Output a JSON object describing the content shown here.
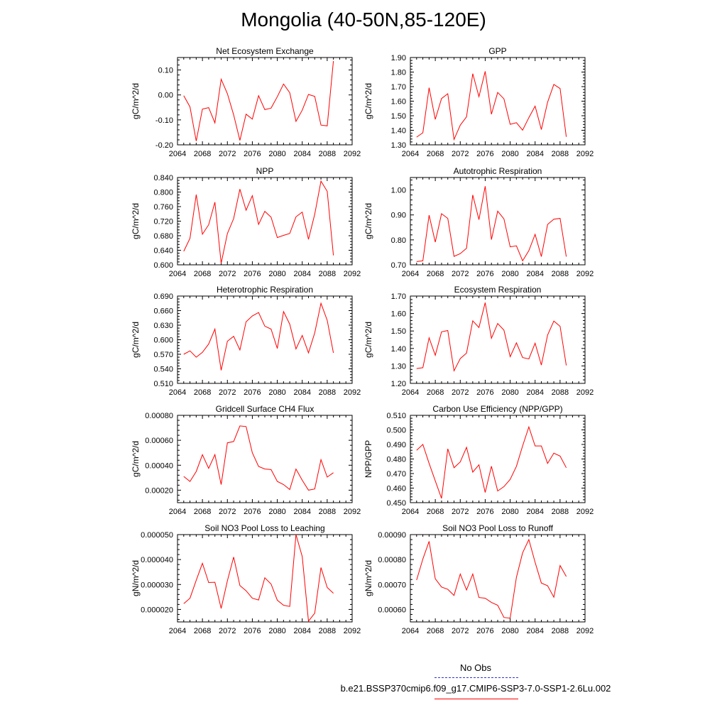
{
  "title": "Mongolia (40-50N,85-120E)",
  "legend": {
    "obs_label": "No Obs",
    "obs_color": "#3333cc",
    "case_label": "b.e21.BSSP370cmip6.f09_g17.CMIP6-SSP3-7.0-SSP1-2.6Lu.002",
    "case_color": "#ff0000"
  },
  "chart_data": [
    {
      "type": "line",
      "title": "Net Ecosystem Exchange",
      "ylabel": "gC/m^2/d",
      "xlim": [
        2064,
        2092
      ],
      "xticks": [
        "2064",
        "2068",
        "2072",
        "2076",
        "2080",
        "2084",
        "2088",
        "2092"
      ],
      "ylim": [
        -0.2,
        0.15
      ],
      "yticks": [
        "-0.20",
        "-0.10",
        "0.00",
        "0.10"
      ],
      "x": [
        2065,
        2066,
        2067,
        2068,
        2069,
        2070,
        2071,
        2072,
        2073,
        2074,
        2075,
        2076,
        2077,
        2078,
        2079,
        2080,
        2081,
        2082,
        2083,
        2084,
        2085,
        2086,
        2087,
        2088,
        2089
      ],
      "values": [
        -0.003,
        -0.048,
        -0.185,
        -0.057,
        -0.051,
        -0.112,
        0.063,
        0.005,
        -0.08,
        -0.182,
        -0.077,
        -0.097,
        -0.003,
        -0.059,
        -0.053,
        -0.007,
        0.044,
        0.009,
        -0.106,
        -0.061,
        0.002,
        -0.006,
        -0.121,
        -0.124,
        0.136
      ]
    },
    {
      "type": "line",
      "title": "GPP",
      "ylabel": "gC/m^2/d",
      "xlim": [
        2064,
        2092
      ],
      "xticks": [
        "2064",
        "2068",
        "2072",
        "2076",
        "2080",
        "2084",
        "2088",
        "2092"
      ],
      "ylim": [
        1.3,
        1.9
      ],
      "yticks": [
        "1.30",
        "1.40",
        "1.50",
        "1.60",
        "1.70",
        "1.80",
        "1.90"
      ],
      "x": [
        2065,
        2066,
        2067,
        2068,
        2069,
        2070,
        2071,
        2072,
        2073,
        2074,
        2075,
        2076,
        2077,
        2078,
        2079,
        2080,
        2081,
        2082,
        2083,
        2084,
        2085,
        2086,
        2087,
        2088,
        2089
      ],
      "values": [
        1.353,
        1.383,
        1.692,
        1.475,
        1.618,
        1.651,
        1.337,
        1.435,
        1.492,
        1.789,
        1.631,
        1.805,
        1.51,
        1.66,
        1.616,
        1.441,
        1.452,
        1.401,
        1.487,
        1.566,
        1.405,
        1.593,
        1.715,
        1.687,
        1.355
      ]
    },
    {
      "type": "line",
      "title": "NPP",
      "ylabel": "gC/m^2/d",
      "xlim": [
        2064,
        2092
      ],
      "xticks": [
        "2064",
        "2068",
        "2072",
        "2076",
        "2080",
        "2084",
        "2088",
        "2092"
      ],
      "ylim": [
        0.6,
        0.84
      ],
      "yticks": [
        "0.600",
        "0.640",
        "0.680",
        "0.720",
        "0.760",
        "0.800",
        "0.840"
      ],
      "x": [
        2065,
        2066,
        2067,
        2068,
        2069,
        2070,
        2071,
        2072,
        2073,
        2074,
        2075,
        2076,
        2077,
        2078,
        2079,
        2080,
        2081,
        2082,
        2083,
        2084,
        2085,
        2086,
        2087,
        2088,
        2089
      ],
      "values": [
        0.637,
        0.673,
        0.793,
        0.684,
        0.71,
        0.772,
        0.604,
        0.686,
        0.727,
        0.808,
        0.75,
        0.79,
        0.711,
        0.747,
        0.731,
        0.675,
        0.681,
        0.686,
        0.732,
        0.745,
        0.67,
        0.739,
        0.83,
        0.802,
        0.626
      ]
    },
    {
      "type": "line",
      "title": "Autotrophic Respiration",
      "ylabel": "gC/m^2/d",
      "xlim": [
        2064,
        2092
      ],
      "xticks": [
        "2064",
        "2068",
        "2072",
        "2076",
        "2080",
        "2084",
        "2088",
        "2092"
      ],
      "ylim": [
        0.7,
        1.05
      ],
      "yticks": [
        "0.70",
        "0.80",
        "0.90",
        "1.00"
      ],
      "x": [
        2065,
        2066,
        2067,
        2068,
        2069,
        2070,
        2071,
        2072,
        2073,
        2074,
        2075,
        2076,
        2077,
        2078,
        2079,
        2080,
        2081,
        2082,
        2083,
        2084,
        2085,
        2086,
        2087,
        2088,
        2089
      ],
      "values": [
        0.713,
        0.716,
        0.899,
        0.791,
        0.905,
        0.886,
        0.734,
        0.745,
        0.766,
        0.98,
        0.881,
        1.015,
        0.801,
        0.915,
        0.884,
        0.772,
        0.776,
        0.716,
        0.757,
        0.822,
        0.733,
        0.862,
        0.883,
        0.886,
        0.733
      ]
    },
    {
      "type": "line",
      "title": "Heterotrophic Respiration",
      "ylabel": "gC/m^2/d",
      "xlim": [
        2064,
        2092
      ],
      "xticks": [
        "2064",
        "2068",
        "2072",
        "2076",
        "2080",
        "2084",
        "2088",
        "2092"
      ],
      "ylim": [
        0.51,
        0.69
      ],
      "yticks": [
        "0.510",
        "0.540",
        "0.570",
        "0.600",
        "0.630",
        "0.660",
        "0.690"
      ],
      "x": [
        2065,
        2066,
        2067,
        2068,
        2069,
        2070,
        2071,
        2072,
        2073,
        2074,
        2075,
        2076,
        2077,
        2078,
        2079,
        2080,
        2081,
        2082,
        2083,
        2084,
        2085,
        2086,
        2087,
        2088,
        2089
      ],
      "values": [
        0.57,
        0.577,
        0.564,
        0.574,
        0.591,
        0.622,
        0.537,
        0.597,
        0.607,
        0.579,
        0.637,
        0.649,
        0.656,
        0.628,
        0.622,
        0.582,
        0.658,
        0.632,
        0.581,
        0.609,
        0.573,
        0.614,
        0.675,
        0.64,
        0.573
      ]
    },
    {
      "type": "line",
      "title": "Ecosystem Respiration",
      "ylabel": "gC/m^2/d",
      "xlim": [
        2064,
        2092
      ],
      "xticks": [
        "2064",
        "2068",
        "2072",
        "2076",
        "2080",
        "2084",
        "2088",
        "2092"
      ],
      "ylim": [
        1.2,
        1.7
      ],
      "yticks": [
        "1.20",
        "1.30",
        "1.40",
        "1.50",
        "1.60",
        "1.70"
      ],
      "x": [
        2065,
        2066,
        2067,
        2068,
        2069,
        2070,
        2071,
        2072,
        2073,
        2074,
        2075,
        2076,
        2077,
        2078,
        2079,
        2080,
        2081,
        2082,
        2083,
        2084,
        2085,
        2086,
        2087,
        2088,
        2089
      ],
      "values": [
        1.285,
        1.29,
        1.461,
        1.361,
        1.495,
        1.503,
        1.272,
        1.342,
        1.373,
        1.558,
        1.52,
        1.662,
        1.458,
        1.543,
        1.505,
        1.353,
        1.432,
        1.348,
        1.34,
        1.43,
        1.305,
        1.477,
        1.557,
        1.527,
        1.303
      ]
    },
    {
      "type": "line",
      "title": "Gridcell Surface CH4 Flux",
      "ylabel": "gC/m^2/d",
      "xlim": [
        2064,
        2092
      ],
      "xticks": [
        "2064",
        "2068",
        "2072",
        "2076",
        "2080",
        "2084",
        "2088",
        "2092"
      ],
      "ylim": [
        0.0001,
        0.0008
      ],
      "yticks": [
        "0.00020",
        "0.00040",
        "0.00060",
        "0.00080"
      ],
      "x": [
        2065,
        2066,
        2067,
        2068,
        2069,
        2070,
        2071,
        2072,
        2073,
        2074,
        2075,
        2076,
        2077,
        2078,
        2079,
        2080,
        2081,
        2082,
        2083,
        2084,
        2085,
        2086,
        2087,
        2088,
        2089
      ],
      "values": [
        0.00031,
        0.00027,
        0.00035,
        0.000485,
        0.000375,
        0.000485,
        0.000245,
        0.00058,
        0.00059,
        0.000715,
        0.00071,
        0.0005,
        0.00039,
        0.00037,
        0.000365,
        0.00027,
        0.000245,
        0.000205,
        0.00037,
        0.00028,
        0.0002,
        0.00021,
        0.000445,
        0.000305,
        0.00034
      ]
    },
    {
      "type": "line",
      "title": "Carbon Use Efficiency (NPP/GPP)",
      "ylabel": "NPP/GPP",
      "xlim": [
        2064,
        2092
      ],
      "xticks": [
        "2064",
        "2068",
        "2072",
        "2076",
        "2080",
        "2084",
        "2088",
        "2092"
      ],
      "ylim": [
        0.45,
        0.51
      ],
      "yticks": [
        "0.450",
        "0.460",
        "0.470",
        "0.480",
        "0.490",
        "0.500",
        "0.510"
      ],
      "x": [
        2065,
        2066,
        2067,
        2068,
        2069,
        2070,
        2071,
        2072,
        2073,
        2074,
        2075,
        2076,
        2077,
        2078,
        2079,
        2080,
        2081,
        2082,
        2083,
        2084,
        2085,
        2086,
        2087,
        2088,
        2089
      ],
      "values": [
        0.486,
        0.49,
        0.477,
        0.465,
        0.453,
        0.487,
        0.474,
        0.478,
        0.488,
        0.471,
        0.476,
        0.457,
        0.475,
        0.458,
        0.461,
        0.466,
        0.475,
        0.489,
        0.502,
        0.489,
        0.489,
        0.477,
        0.484,
        0.482,
        0.474
      ]
    },
    {
      "type": "line",
      "title": "Soil NO3 Pool Loss to Leaching",
      "ylabel": "gN/m^2/d",
      "xlim": [
        2064,
        2092
      ],
      "xticks": [
        "2064",
        "2068",
        "2072",
        "2076",
        "2080",
        "2084",
        "2088",
        "2092"
      ],
      "ylim": [
        1.5e-05,
        5e-05
      ],
      "yticks": [
        "0.000020",
        "0.000030",
        "0.000040",
        "0.000050"
      ],
      "x": [
        2065,
        2066,
        2067,
        2068,
        2069,
        2070,
        2071,
        2072,
        2073,
        2074,
        2075,
        2076,
        2077,
        2078,
        2079,
        2080,
        2081,
        2082,
        2083,
        2084,
        2085,
        2086,
        2087,
        2088,
        2089
      ],
      "values": [
        2.23e-05,
        2.45e-05,
        3.17e-05,
        3.85e-05,
        3.08e-05,
        3.09e-05,
        2.04e-05,
        3.15e-05,
        4.1e-05,
        2.96e-05,
        2.75e-05,
        2.45e-05,
        2.38e-05,
        3.27e-05,
        3.02e-05,
        2.37e-05,
        2.17e-05,
        2.12e-05,
        5e-05,
        4.12e-05,
        1.53e-05,
        1.85e-05,
        3.68e-05,
        2.88e-05,
        2.65e-05
      ]
    },
    {
      "type": "line",
      "title": "Soil NO3 Pool Loss to Runoff",
      "ylabel": "gN/m^2/d",
      "xlim": [
        2064,
        2092
      ],
      "xticks": [
        "2064",
        "2068",
        "2072",
        "2076",
        "2080",
        "2084",
        "2088",
        "2092"
      ],
      "ylim": [
        0.00055,
        0.0009
      ],
      "yticks": [
        "0.00060",
        "0.00070",
        "0.00080",
        "0.00090"
      ],
      "x": [
        2065,
        2066,
        2067,
        2068,
        2069,
        2070,
        2071,
        2072,
        2073,
        2074,
        2075,
        2076,
        2077,
        2078,
        2079,
        2080,
        2081,
        2082,
        2083,
        2084,
        2085,
        2086,
        2087,
        2088,
        2089
      ],
      "values": [
        0.000718,
        0.000802,
        0.000873,
        0.000723,
        0.00069,
        0.000681,
        0.000656,
        0.000742,
        0.000678,
        0.000742,
        0.000648,
        0.000645,
        0.000628,
        0.000617,
        0.000568,
        0.000565,
        0.000729,
        0.000827,
        0.00088,
        0.000789,
        0.000706,
        0.000695,
        0.000649,
        0.000776,
        0.000732
      ]
    }
  ]
}
